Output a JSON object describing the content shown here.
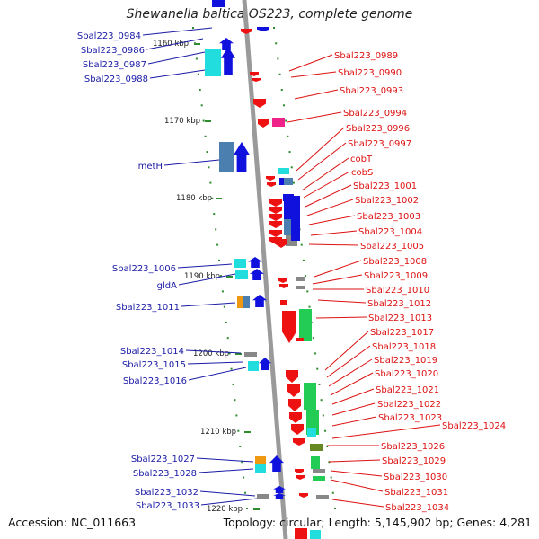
{
  "header": {
    "title": "Shewanella baltica OS223, complete genome"
  },
  "footer": {
    "accession": "Accession: NC_011663",
    "topology": "Topology: circular; Length: 5,145,902 bp; Genes: 4,281"
  },
  "colors": {
    "backbone": "#9a9a9a",
    "tick": "#2e8b2e",
    "label_left": "#1a1aa6",
    "label_right": "#dd1111",
    "gene_red": "#ee1111",
    "gene_blue": "#1111dd",
    "gene_cyan": "#22dddd",
    "gene_steel": "#4a7fb0",
    "gene_green": "#22cc55",
    "gene_olive": "#668822",
    "gene_gray": "#888888",
    "gene_orange": "#ee9911",
    "gene_magenta": "#ee2288"
  },
  "scale_labels": [
    "1160 kbp",
    "1170 kbp",
    "1180 kbp",
    "1190 kbp",
    "1200 kbp",
    "1210 kbp",
    "1220 kbp"
  ],
  "left_labels": [
    "Sbal223_0984",
    "Sbal223_0986",
    "Sbal223_0987",
    "Sbal223_0988",
    "metH",
    "Sbal223_1006",
    "gldA",
    "Sbal223_1011",
    "Sbal223_1014",
    "Sbal223_1015",
    "Sbal223_1016",
    "Sbal223_1027",
    "Sbal223_1028",
    "Sbal223_1032",
    "Sbal223_1033"
  ],
  "right_labels": [
    "Sbal223_0989",
    "Sbal223_0990",
    "Sbal223_0993",
    "Sbal223_0994",
    "Sbal223_0996",
    "Sbal223_0997",
    "cobT",
    "cobS",
    "Sbal223_1001",
    "Sbal223_1002",
    "Sbal223_1003",
    "Sbal223_1004",
    "Sbal223_1005",
    "Sbal223_1008",
    "Sbal223_1009",
    "Sbal223_1010",
    "Sbal223_1012",
    "Sbal223_1013",
    "Sbal223_1017",
    "Sbal223_1018",
    "Sbal223_1019",
    "Sbal223_1020",
    "Sbal223_1021",
    "Sbal223_1022",
    "Sbal223_1023",
    "Sbal223_1024",
    "Sbal223_1026",
    "Sbal223_1029",
    "Sbal223_1030",
    "Sbal223_1031",
    "Sbal223_1034"
  ]
}
